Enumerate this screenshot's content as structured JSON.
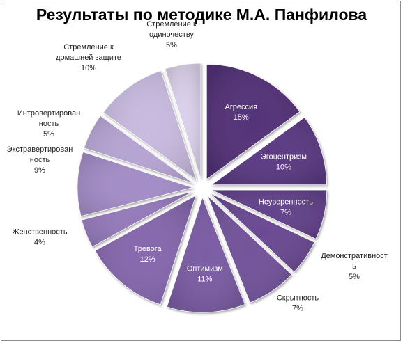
{
  "chart_data": {
    "type": "pie",
    "title": "Результаты по методике М.А. Панфилова",
    "exploded": true,
    "slices": [
      {
        "name": "Агрессия",
        "label_lines": [
          "Агрессия"
        ],
        "value": 15,
        "value_label": "15%",
        "color": "#533278",
        "label_inside": true
      },
      {
        "name": "Эгоцентризм",
        "label_lines": [
          "Эгоцентризм"
        ],
        "value": 10,
        "value_label": "10%",
        "color": "#5a3a82",
        "label_inside": true
      },
      {
        "name": "Неуверенность",
        "label_lines": [
          "Неуверенность"
        ],
        "value": 7,
        "value_label": "7%",
        "color": "#62428a",
        "label_inside": true
      },
      {
        "name": "Демонстративность",
        "label_lines": [
          "Демонстративност",
          "ь"
        ],
        "value": 5,
        "value_label": "5%",
        "color": "#6a4a92",
        "label_inside": false
      },
      {
        "name": "Скрытность",
        "label_lines": [
          "Скрытность"
        ],
        "value": 7,
        "value_label": "7%",
        "color": "#72539a",
        "label_inside": false
      },
      {
        "name": "Оптимизм",
        "label_lines": [
          "Оптимизм"
        ],
        "value": 11,
        "value_label": "11%",
        "color": "#7a5ca3",
        "label_inside": true
      },
      {
        "name": "Тревога",
        "label_lines": [
          "Тревога"
        ],
        "value": 12,
        "value_label": "12%",
        "color": "#8567ad",
        "label_inside": true
      },
      {
        "name": "Женственность",
        "label_lines": [
          "Женственность"
        ],
        "value": 4,
        "value_label": "4%",
        "color": "#9479ba",
        "label_inside": false
      },
      {
        "name": "Экстравертированность",
        "label_lines": [
          "Экстравертирован",
          "ность"
        ],
        "value": 9,
        "value_label": "9%",
        "color": "#a48dc7",
        "label_inside": false
      },
      {
        "name": "Интровертированность",
        "label_lines": [
          "Интровертирован",
          "ность"
        ],
        "value": 5,
        "value_label": "5%",
        "color": "#b6a4d3",
        "label_inside": false
      },
      {
        "name": "Стремление к домашней защите",
        "label_lines": [
          "Стремление к",
          "домашней защите"
        ],
        "value": 10,
        "value_label": "10%",
        "color": "#c8badf",
        "label_inside": false
      },
      {
        "name": "Стремление к одиночеству",
        "label_lines": [
          "Стремление к",
          "одиночеству"
        ],
        "value": 5,
        "value_label": "5%",
        "color": "#dad0ea",
        "label_inside": false
      }
    ]
  }
}
